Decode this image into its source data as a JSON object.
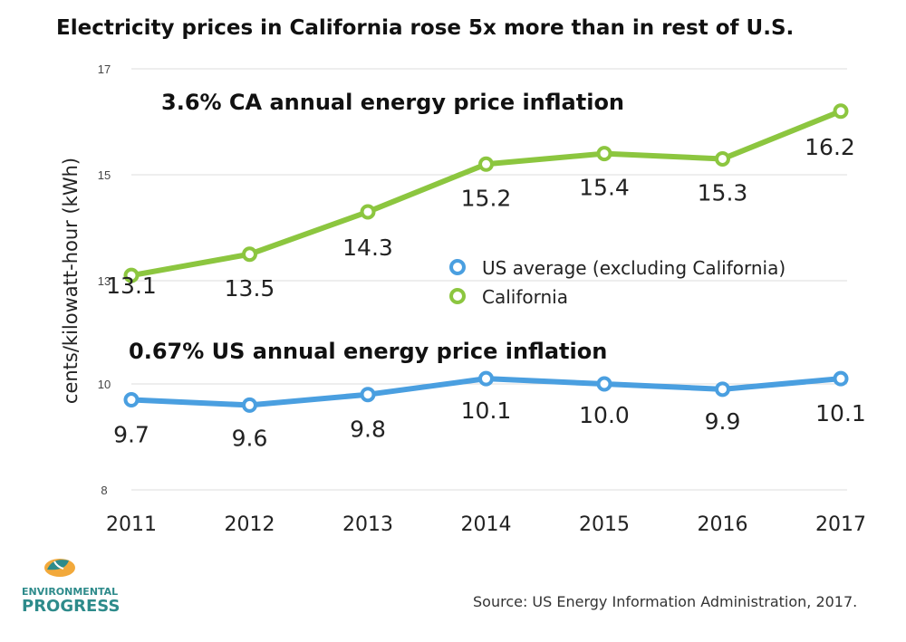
{
  "chart_data": {
    "type": "line",
    "title": "Electricity prices in California rose 5x more than in rest of U.S.",
    "ylabel": "cents/kilowatt-hour (kWh)",
    "xlabel": "",
    "x": [
      "2011",
      "2012",
      "2013",
      "2014",
      "2015",
      "2016",
      "2017"
    ],
    "y_ticks": [
      "17",
      "15",
      "13",
      "10",
      "8"
    ],
    "y_axis_note": "broken axis: upper segment 13–17, lower segment 8–10",
    "series": [
      {
        "name": "California",
        "color": "#8cc63f",
        "values": [
          13.1,
          13.5,
          14.3,
          15.2,
          15.4,
          15.3,
          16.2
        ],
        "labels": [
          "13.1",
          "13.5",
          "14.3",
          "15.2",
          "15.4",
          "15.3",
          "16.2"
        ]
      },
      {
        "name": "US average (excluding California)",
        "color": "#4a9fe0",
        "values": [
          9.7,
          9.6,
          9.8,
          10.1,
          10.0,
          9.9,
          10.1
        ],
        "labels": [
          "9.7",
          "9.6",
          "9.8",
          "10.1",
          "10.0",
          "9.9",
          "10.1"
        ]
      }
    ],
    "annotations": [
      "3.6% CA annual energy price inflation",
      "0.67% US annual energy price inflation"
    ],
    "legend": {
      "placement": "center-right",
      "entries": [
        "US average (excluding California)",
        "California"
      ]
    },
    "grid": true
  },
  "logo": {
    "line1": "ENVIRONMENTAL",
    "line2": "PROGRESS",
    "icon": "ep-leaf-logo-icon"
  },
  "source": "Source: US Energy Information Administration, 2017."
}
